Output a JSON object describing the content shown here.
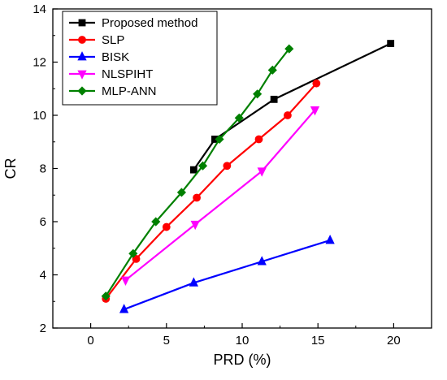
{
  "chart_data": {
    "type": "line",
    "xlabel": "PRD (%)",
    "ylabel": "CR",
    "xlim": [
      -2.5,
      22.5
    ],
    "ylim": [
      2,
      14
    ],
    "xticks": [
      0,
      5,
      10,
      15,
      20
    ],
    "yticks": [
      2,
      4,
      6,
      8,
      10,
      12,
      14
    ],
    "grid": false,
    "legend_position": "top-left",
    "series": [
      {
        "name": "Proposed method",
        "color": "#000000",
        "marker": "square",
        "points": [
          [
            6.8,
            7.95
          ],
          [
            8.2,
            9.1
          ],
          [
            12.1,
            10.6
          ],
          [
            19.8,
            12.7
          ]
        ]
      },
      {
        "name": "SLP",
        "color": "#ff0000",
        "marker": "circle",
        "points": [
          [
            1.0,
            3.1
          ],
          [
            3.0,
            4.6
          ],
          [
            5.0,
            5.8
          ],
          [
            7.0,
            6.9
          ],
          [
            9.0,
            8.1
          ],
          [
            11.1,
            9.1
          ],
          [
            13.0,
            10.0
          ],
          [
            14.9,
            11.2
          ]
        ]
      },
      {
        "name": "BISK",
        "color": "#0000ff",
        "marker": "triangle-up",
        "points": [
          [
            2.2,
            2.7
          ],
          [
            6.8,
            3.7
          ],
          [
            11.3,
            4.5
          ],
          [
            15.8,
            5.3
          ]
        ]
      },
      {
        "name": "NLSPIHT",
        "color": "#ff00ff",
        "marker": "triangle-down",
        "points": [
          [
            2.3,
            3.8
          ],
          [
            6.9,
            5.9
          ],
          [
            11.3,
            7.9
          ],
          [
            14.8,
            10.2
          ]
        ]
      },
      {
        "name": "MLP-ANN",
        "color": "#008000",
        "marker": "diamond",
        "points": [
          [
            1.0,
            3.2
          ],
          [
            2.8,
            4.8
          ],
          [
            4.3,
            6.0
          ],
          [
            6.0,
            7.1
          ],
          [
            7.4,
            8.1
          ],
          [
            8.5,
            9.1
          ],
          [
            9.8,
            9.9
          ],
          [
            11.0,
            10.8
          ],
          [
            12.0,
            11.7
          ],
          [
            13.1,
            12.5
          ]
        ]
      }
    ]
  }
}
